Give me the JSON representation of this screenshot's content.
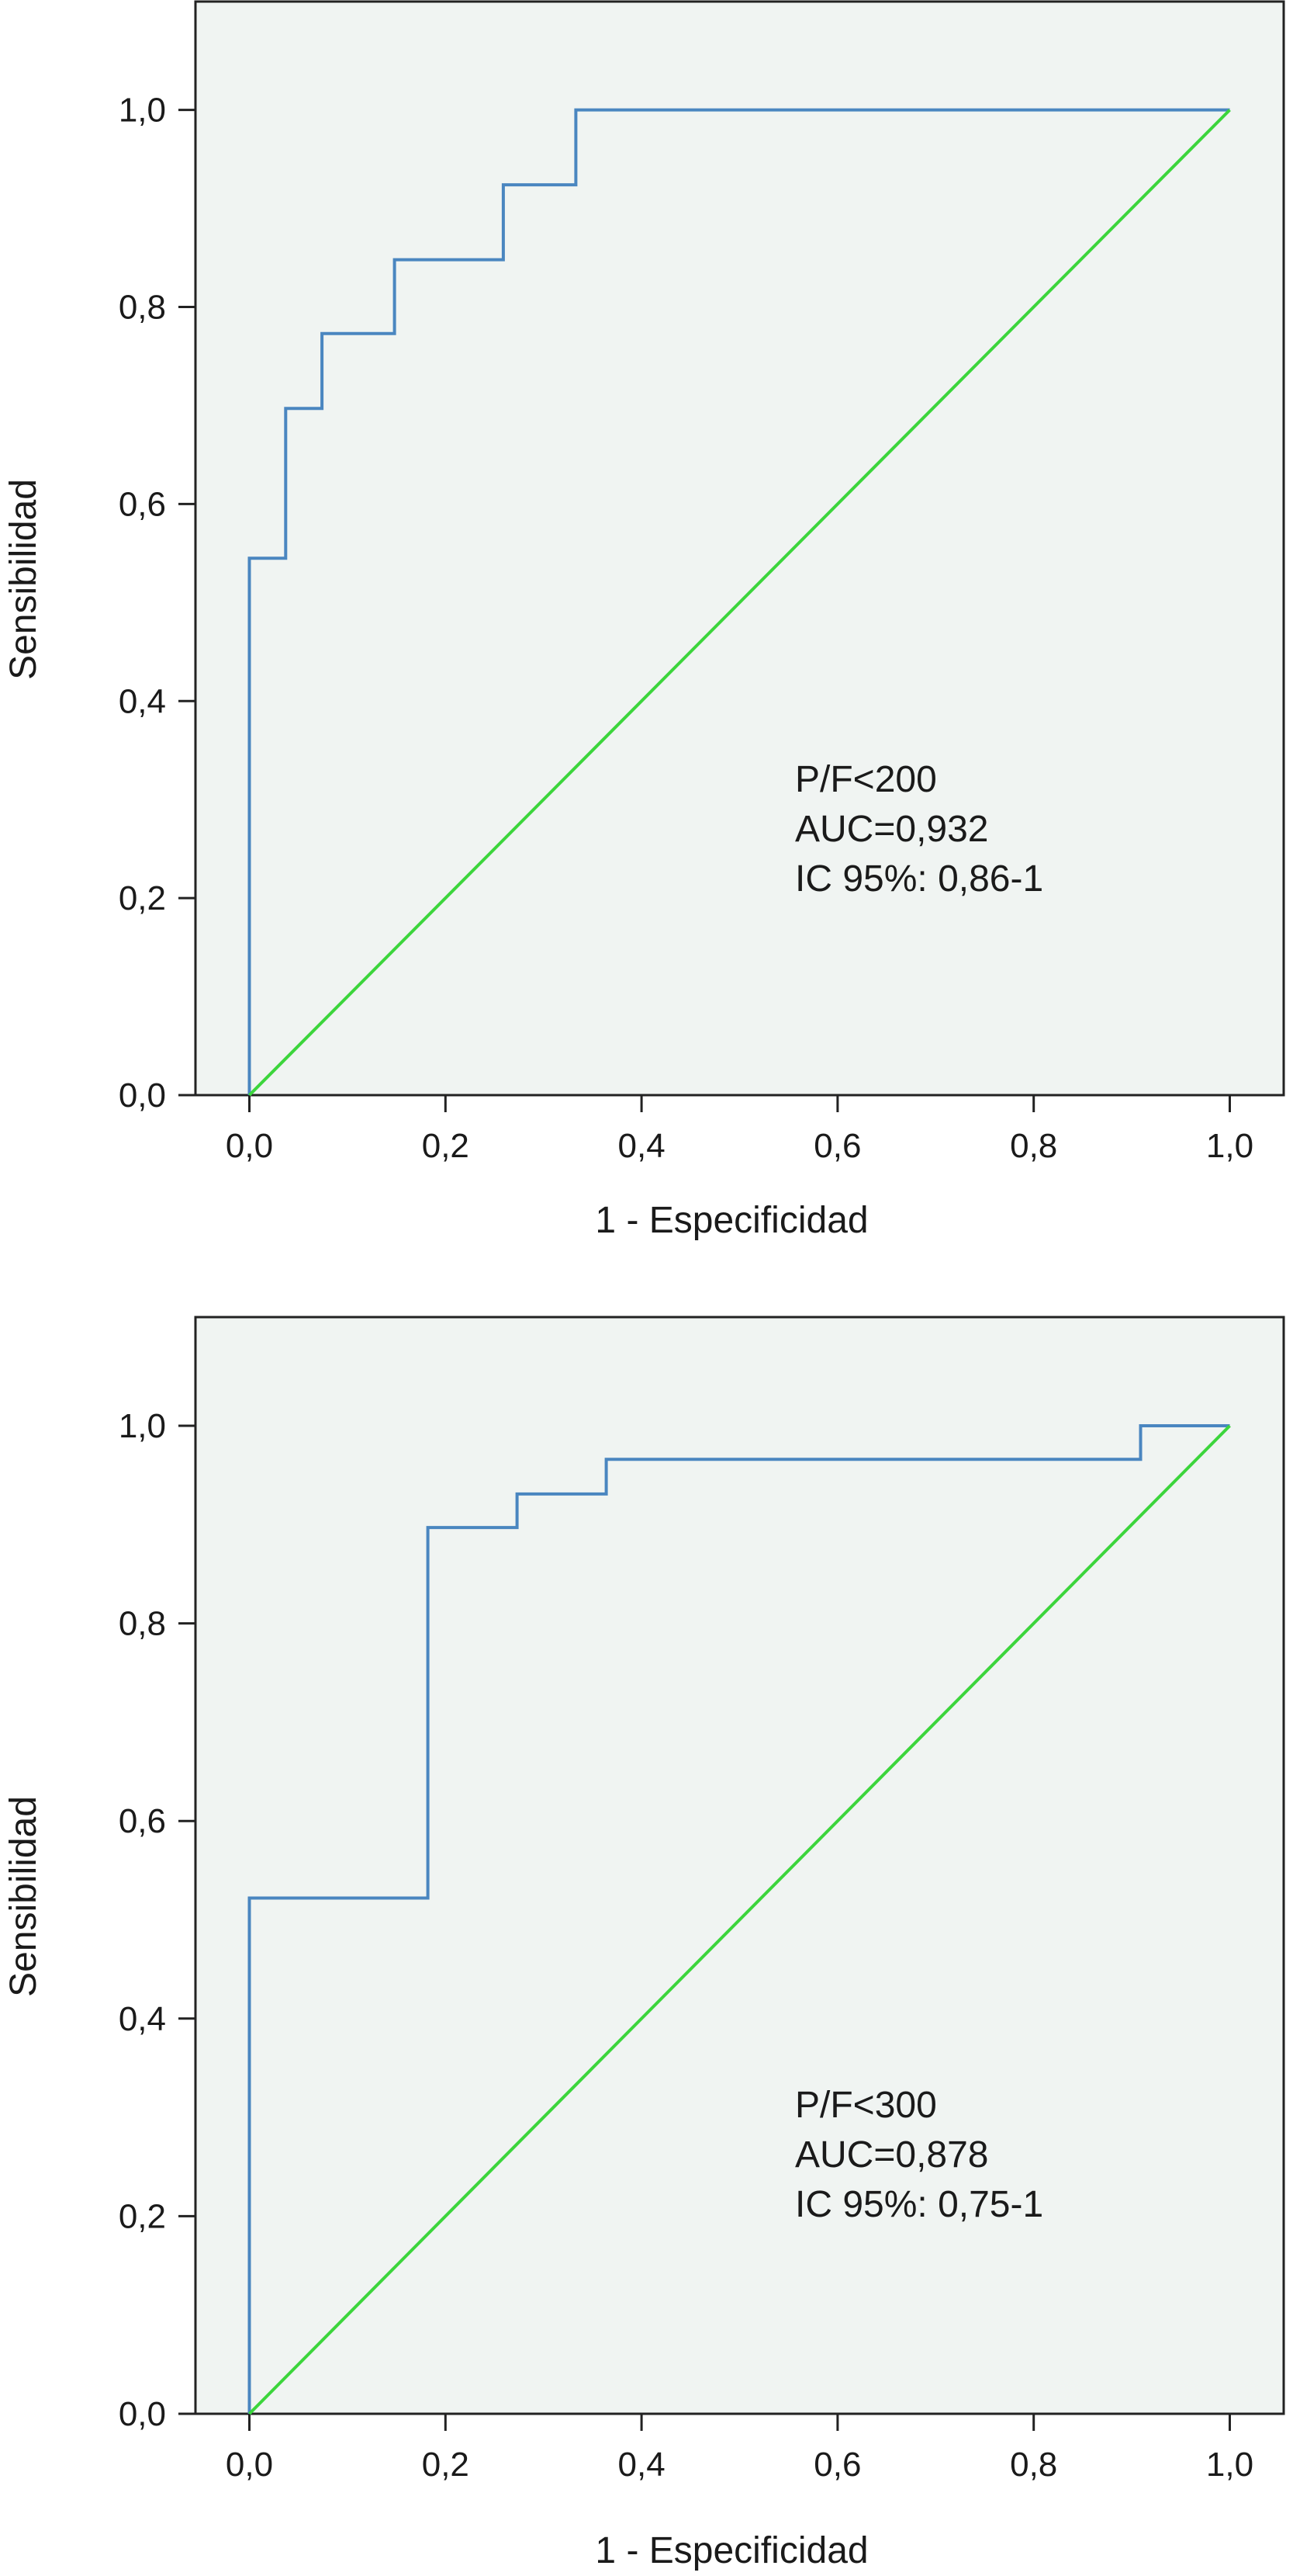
{
  "chart_data": [
    {
      "type": "line",
      "xlabel": "1 - Especificidad",
      "ylabel": "Sensibilidad",
      "xlim": [
        -0.055,
        1.055
      ],
      "ylim": [
        0,
        1.11
      ],
      "xticks": [
        "0,0",
        "0,2",
        "0,4",
        "0,6",
        "0,8",
        "1,0"
      ],
      "yticks": [
        "0,0",
        "0,2",
        "0,4",
        "0,6",
        "0,8",
        "1,0"
      ],
      "grid": false,
      "background": "#f0f4f2",
      "annotation": [
        "P/F<200",
        "AUC=0,932",
        "IC 95%: 0,86-1"
      ],
      "series": [
        {
          "color": "#4a86c0",
          "style": "step",
          "x": [
            0,
            0,
            0.037,
            0.037,
            0.074,
            0.074,
            0.148,
            0.148,
            0.259,
            0.259,
            0.333,
            0.333,
            1.0
          ],
          "y": [
            0,
            0.545,
            0.545,
            0.697,
            0.697,
            0.773,
            0.773,
            0.848,
            0.848,
            0.924,
            0.924,
            1.0,
            1.0
          ]
        },
        {
          "color": "#3cd53c",
          "style": "line",
          "x": [
            0,
            1
          ],
          "y": [
            0,
            1
          ]
        }
      ]
    },
    {
      "type": "line",
      "xlabel": "1 - Especificidad",
      "ylabel": "Sensibilidad",
      "xlim": [
        -0.055,
        1.055
      ],
      "ylim": [
        0,
        1.11
      ],
      "xticks": [
        "0,0",
        "0,2",
        "0,4",
        "0,6",
        "0,8",
        "1,0"
      ],
      "yticks": [
        "0,0",
        "0,2",
        "0,4",
        "0,6",
        "0,8",
        "1,0"
      ],
      "grid": false,
      "background": "#f0f4f2",
      "annotation": [
        "P/F<300",
        "AUC=0,878",
        "IC 95%: 0,75-1"
      ],
      "series": [
        {
          "color": "#4a86c0",
          "style": "step",
          "x": [
            0,
            0,
            0.182,
            0.182,
            0.273,
            0.273,
            0.364,
            0.364,
            0.909,
            0.909,
            1.0
          ],
          "y": [
            0,
            0.522,
            0.522,
            0.897,
            0.897,
            0.931,
            0.931,
            0.966,
            0.966,
            1.0,
            1.0
          ]
        },
        {
          "color": "#3cd53c",
          "style": "line",
          "x": [
            0,
            1
          ],
          "y": [
            0,
            1
          ]
        }
      ]
    }
  ]
}
